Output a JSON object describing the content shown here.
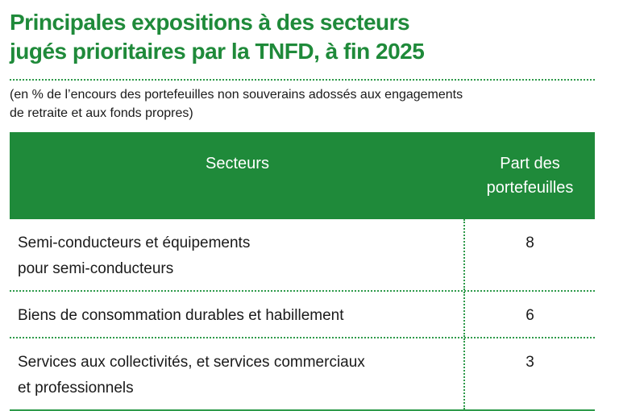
{
  "title": {
    "line1": "Principales expositions à des secteurs",
    "line2": "jugés prioritaires par la TNFD, à fin 2025"
  },
  "subtitle": {
    "line1": "(en % de l’encours des portefeuilles non souverains adossés aux engagements",
    "line2": "de retraite et aux fonds propres)"
  },
  "table": {
    "header": {
      "sector": "Secteurs",
      "share_line1": "Part des",
      "share_line2": "portefeuilles"
    },
    "rows": [
      {
        "sector_line1": "Semi-conducteurs et équipements",
        "sector_line2": "pour semi-conducteurs",
        "share": "8"
      },
      {
        "sector_line1": "Biens de consommation durables et habillement",
        "sector_line2": "",
        "share": "6"
      },
      {
        "sector_line1": "Services aux collectivités, et services commerciaux",
        "sector_line2": "et professionnels",
        "share": "3"
      }
    ]
  },
  "colors": {
    "accent": "#1f8a3a",
    "text": "#1a1a1a"
  }
}
